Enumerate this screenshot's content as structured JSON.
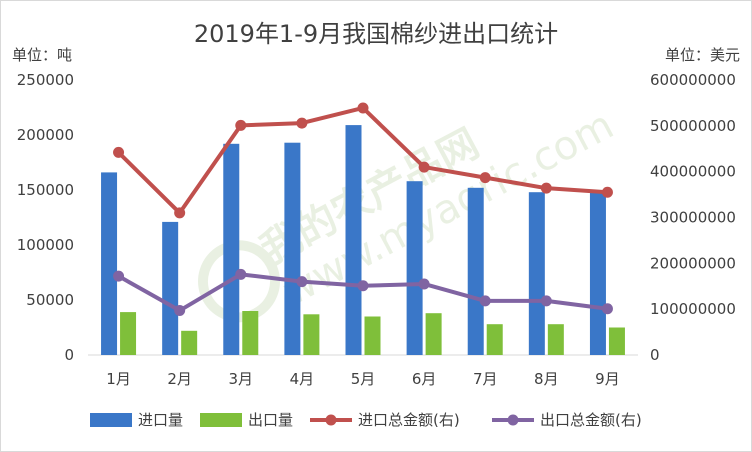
{
  "chart_data": {
    "type": "bar",
    "title": "2019年1-9月我国棉纱进出口统计",
    "unit_left": "单位：吨",
    "unit_right": "单位：美元",
    "categories": [
      "1月",
      "2月",
      "3月",
      "4月",
      "5月",
      "6月",
      "7月",
      "8月",
      "9月"
    ],
    "y_left": {
      "min": 0,
      "max": 250000,
      "ticks": [
        "0",
        "50000",
        "100000",
        "150000",
        "200000",
        "250000"
      ]
    },
    "y_right": {
      "min": 0,
      "max": 600000000,
      "ticks": [
        "0",
        "100000000",
        "200000000",
        "300000000",
        "400000000",
        "500000000",
        "600000000"
      ]
    },
    "grid": false,
    "legend_position": "bottom",
    "watermark": "我的农产品网 www.myagric.com",
    "series": [
      {
        "name": "进口量",
        "type": "bar",
        "axis": "left",
        "color": "#3a77c8",
        "values": [
          166000,
          121000,
          192000,
          193000,
          209000,
          158000,
          152000,
          148000,
          148000
        ]
      },
      {
        "name": "出口量",
        "type": "bar",
        "axis": "left",
        "color": "#7fbf3a",
        "values": [
          39000,
          22000,
          40000,
          37000,
          35000,
          38000,
          28000,
          28000,
          25000
        ]
      },
      {
        "name": "进口总金额(右)",
        "type": "line",
        "axis": "right",
        "color": "#c0504d",
        "values": [
          442000000,
          310000000,
          501000000,
          506000000,
          539000000,
          410000000,
          387000000,
          364000000,
          355000000
        ]
      },
      {
        "name": "出口总金额(右)",
        "type": "line",
        "axis": "right",
        "color": "#8064a2",
        "values": [
          172000000,
          97000000,
          176000000,
          160000000,
          151000000,
          155000000,
          118000000,
          118000000,
          101000000
        ]
      }
    ]
  }
}
